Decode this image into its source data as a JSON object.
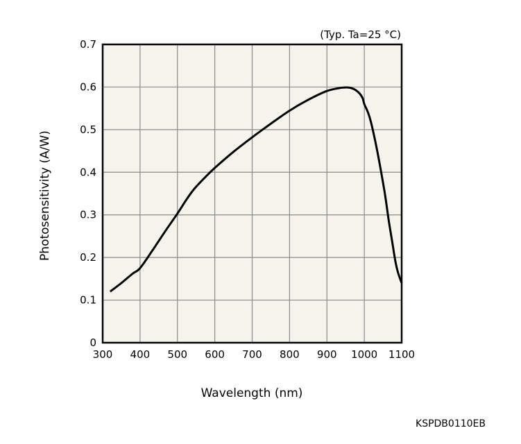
{
  "chart_data": {
    "type": "line",
    "title": "",
    "annotation": "(Typ. Ta=25 °C)",
    "xlabel": "Wavelength (nm)",
    "ylabel": "Photosensitivity (A/W)",
    "xlim": [
      300,
      1100
    ],
    "ylim": [
      0,
      0.7
    ],
    "xticks": [
      "300",
      "400",
      "500",
      "600",
      "700",
      "800",
      "900",
      "1000",
      "1100"
    ],
    "yticks": [
      "0",
      "0.1",
      "0.2",
      "0.3",
      "0.4",
      "0.5",
      "0.6",
      "0.7"
    ],
    "grid": true,
    "code": "KSPDB0110EB",
    "colors": {
      "plot_bg": "#f4f3ec",
      "grid": "#8a8a86",
      "line": "#000000"
    },
    "series": [
      {
        "name": "Photosensitivity",
        "x": [
          320,
          350,
          380,
          400,
          435,
          470,
          500,
          525,
          546,
          575,
          601,
          650,
          700,
          750,
          799,
          850,
          898,
          930,
          954,
          970,
          984,
          995,
          1000,
          1010,
          1018,
          1030,
          1040,
          1055,
          1065,
          1075,
          1083,
          1090,
          1100
        ],
        "y": [
          0.12,
          0.14,
          0.162,
          0.175,
          0.219,
          0.265,
          0.303,
          0.337,
          0.362,
          0.389,
          0.411,
          0.448,
          0.482,
          0.514,
          0.544,
          0.57,
          0.59,
          0.597,
          0.599,
          0.596,
          0.588,
          0.575,
          0.56,
          0.54,
          0.517,
          0.47,
          0.425,
          0.35,
          0.289,
          0.235,
          0.192,
          0.165,
          0.14
        ]
      }
    ]
  }
}
